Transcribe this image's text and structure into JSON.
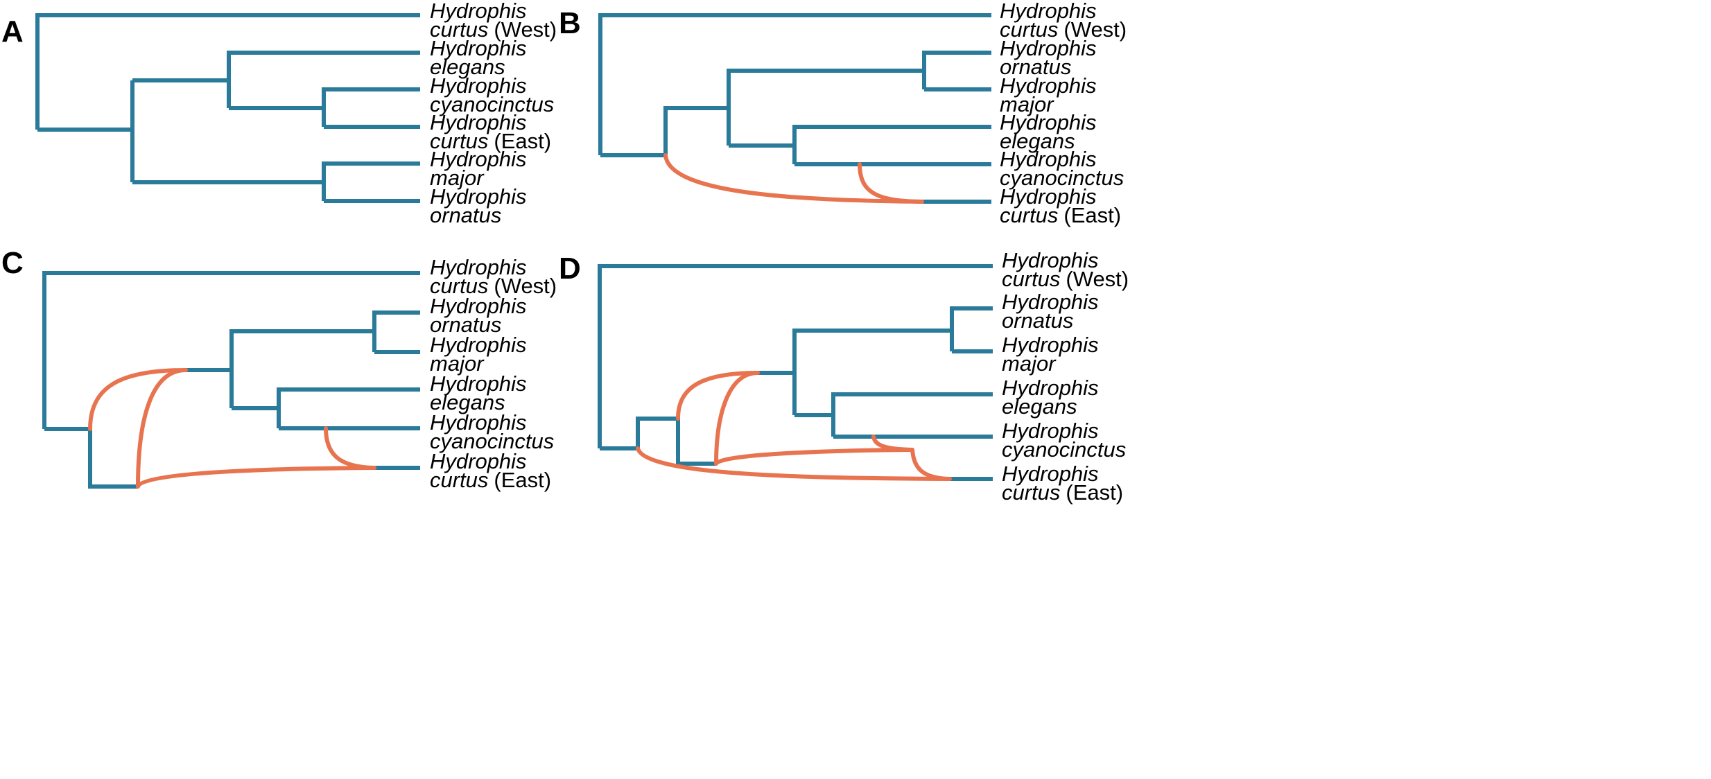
{
  "colors": {
    "tree": "#2a7a9a",
    "hybrid": "#e8734f"
  },
  "panels": [
    {
      "letter": "A",
      "tips": [
        {
          "genus": "Hydrophis",
          "species": "curtus",
          "pop": "(West)"
        },
        {
          "genus": "Hydrophis",
          "species": "elegans",
          "pop": ""
        },
        {
          "genus": "Hydrophis",
          "species": "cyanocinctus",
          "pop": ""
        },
        {
          "genus": "Hydrophis",
          "species": "curtus",
          "pop": "(East)"
        },
        {
          "genus": "Hydrophis",
          "species": "major",
          "pop": ""
        },
        {
          "genus": "Hydrophis",
          "species": "ornatus",
          "pop": ""
        }
      ]
    },
    {
      "letter": "B",
      "tips": [
        {
          "genus": "Hydrophis",
          "species": "curtus",
          "pop": "(West)"
        },
        {
          "genus": "Hydrophis",
          "species": "ornatus",
          "pop": ""
        },
        {
          "genus": "Hydrophis",
          "species": "major",
          "pop": ""
        },
        {
          "genus": "Hydrophis",
          "species": "elegans",
          "pop": ""
        },
        {
          "genus": "Hydrophis",
          "species": "cyanocinctus",
          "pop": ""
        },
        {
          "genus": "Hydrophis",
          "species": "curtus",
          "pop": "(East)"
        }
      ]
    },
    {
      "letter": "C",
      "tips": [
        {
          "genus": "Hydrophis",
          "species": "curtus",
          "pop": "(West)"
        },
        {
          "genus": "Hydrophis",
          "species": "ornatus",
          "pop": ""
        },
        {
          "genus": "Hydrophis",
          "species": "major",
          "pop": ""
        },
        {
          "genus": "Hydrophis",
          "species": "elegans",
          "pop": ""
        },
        {
          "genus": "Hydrophis",
          "species": "cyanocinctus",
          "pop": ""
        },
        {
          "genus": "Hydrophis",
          "species": "curtus",
          "pop": "(East)"
        }
      ]
    },
    {
      "letter": "D",
      "tips": [
        {
          "genus": "Hydrophis",
          "species": "curtus",
          "pop": "(West)"
        },
        {
          "genus": "Hydrophis",
          "species": "ornatus",
          "pop": ""
        },
        {
          "genus": "Hydrophis",
          "species": "major",
          "pop": ""
        },
        {
          "genus": "Hydrophis",
          "species": "elegans",
          "pop": ""
        },
        {
          "genus": "Hydrophis",
          "species": "cyanocinctus",
          "pop": ""
        },
        {
          "genus": "Hydrophis",
          "species": "curtus",
          "pop": "(East)"
        }
      ]
    }
  ]
}
